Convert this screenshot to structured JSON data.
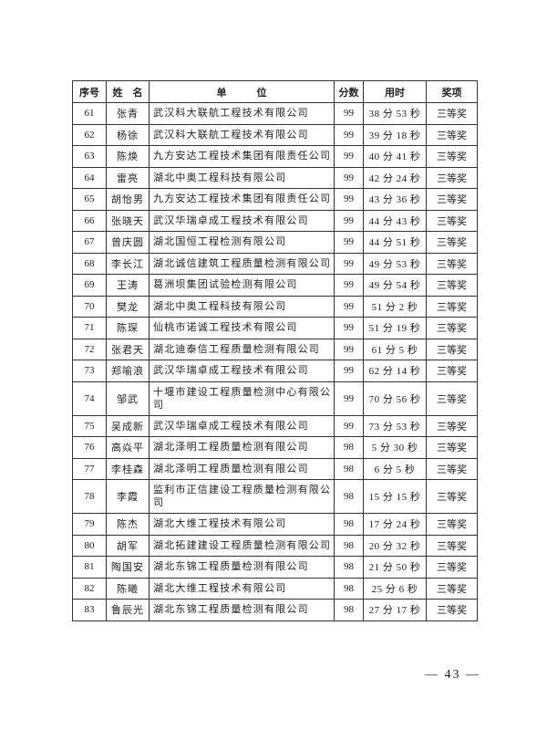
{
  "table": {
    "headers": [
      "序号",
      "姓　名",
      "单　　　位",
      "分数",
      "用时",
      "奖项"
    ],
    "rows": [
      [
        "61",
        "张青",
        "武汉科大联航工程技术有限公司",
        "99",
        "38 分 53 秒",
        "三等奖"
      ],
      [
        "62",
        "杨徐",
        "武汉科大联航工程技术有限公司",
        "99",
        "39 分 18 秒",
        "三等奖"
      ],
      [
        "63",
        "陈焕",
        "九方安达工程技术集团有限责任公司",
        "99",
        "40 分 41 秒",
        "三等奖"
      ],
      [
        "64",
        "雷亮",
        "湖北中奥工程科技有限公司",
        "99",
        "42 分 24 秒",
        "三等奖"
      ],
      [
        "65",
        "胡怡男",
        "九方安达工程技术集团有限责任公司",
        "99",
        "43 分 36 秒",
        "三等奖"
      ],
      [
        "66",
        "张晓天",
        "武汉华瑞卓成工程技术有限公司",
        "99",
        "44 分 43 秒",
        "三等奖"
      ],
      [
        "67",
        "曾庆圆",
        "湖北国恒工程检测有限公司",
        "99",
        "44 分 51 秒",
        "三等奖"
      ],
      [
        "68",
        "李长江",
        "湖北诚信建筑工程质量检测有限公司",
        "99",
        "49 分 53 秒",
        "三等奖"
      ],
      [
        "69",
        "王涛",
        "葛洲坝集团试验检测有限公司",
        "99",
        "49 分 54 秒",
        "三等奖"
      ],
      [
        "70",
        "樊龙",
        "湖北中奥工程科技有限公司",
        "99",
        "51 分 2 秒",
        "三等奖"
      ],
      [
        "71",
        "陈琛",
        "仙桃市诺诚工程技术有限公司",
        "99",
        "51 分 19 秒",
        "三等奖"
      ],
      [
        "72",
        "张君天",
        "湖北迪泰信工程质量检测有限公司",
        "99",
        "61 分 5 秒",
        "三等奖"
      ],
      [
        "73",
        "郑喻浪",
        "武汉华瑞卓成工程技术有限公司",
        "99",
        "62 分 14 秒",
        "三等奖"
      ],
      [
        "74",
        "邹武",
        "十堰市建设工程质量检测中心有限公司",
        "99",
        "70 分 56 秒",
        "三等奖"
      ],
      [
        "75",
        "吴成新",
        "武汉华瑞卓成工程技术有限公司",
        "99",
        "73 分 53 秒",
        "三等奖"
      ],
      [
        "76",
        "高焱平",
        "湖北泽明工程质量检测有限公司",
        "98",
        "5 分 30 秒",
        "三等奖"
      ],
      [
        "77",
        "李桂森",
        "湖北泽明工程质量检测有限公司",
        "98",
        "6 分 5 秒",
        "三等奖"
      ],
      [
        "78",
        "李霞",
        "监利市正信建设工程质量检测有限公司",
        "98",
        "15 分 15 秒",
        "三等奖"
      ],
      [
        "79",
        "陈杰",
        "湖北大维工程技术有限公司",
        "98",
        "17 分 24 秒",
        "三等奖"
      ],
      [
        "80",
        "胡军",
        "湖北拓建建设工程质量检测有限公司",
        "98",
        "20 分 32 秒",
        "三等奖"
      ],
      [
        "81",
        "陶国安",
        "湖北东锦工程质量检测有限公司",
        "98",
        "21 分 50 秒",
        "三等奖"
      ],
      [
        "82",
        "陈曦",
        "湖北大维工程技术有限公司",
        "98",
        "25 分 6 秒",
        "三等奖"
      ],
      [
        "83",
        "鲁辰光",
        "湖北东锦工程质量检测有限公司",
        "98",
        "27 分 17 秒",
        "三等奖"
      ]
    ]
  },
  "footer": {
    "page_number": "— 43 —"
  }
}
